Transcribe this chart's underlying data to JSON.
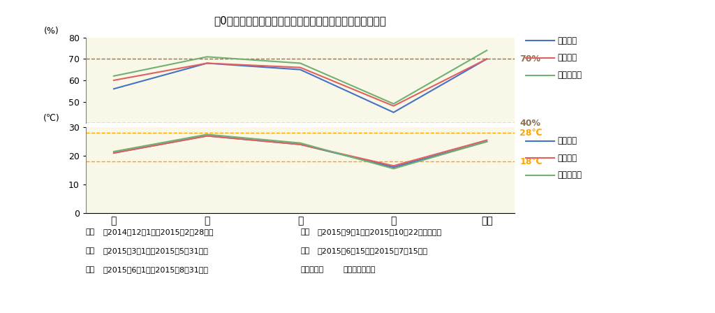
{
  "title": "「0宣言の家」の四季別、部屋別にみた平均温度、平均湿度",
  "seasons": [
    "春",
    "夏",
    "秋",
    "冬",
    "雨期"
  ],
  "humidity": {
    "居間湿度": [
      56,
      68,
      65,
      45,
      70
    ],
    "寝室湿度": [
      60,
      68,
      66,
      48,
      70
    ],
    "脱衣所湿度": [
      62,
      71,
      68,
      49,
      74
    ]
  },
  "temperature": {
    "居間温度": [
      21,
      27,
      24,
      16,
      25
    ],
    "寝室温度": [
      21,
      27,
      24,
      16.5,
      25.5
    ],
    "脱衣所温度": [
      21.5,
      27.5,
      24.5,
      15.5,
      25
    ]
  },
  "humidity_ylim": [
    40,
    80
  ],
  "humidity_yticks": [
    50,
    60,
    70,
    80
  ],
  "temperature_ylim": [
    0,
    30
  ],
  "temperature_yticks": [
    0,
    10,
    20,
    30
  ],
  "humidity_ref_line_70": 70,
  "humidity_ref_line_40": 40,
  "temp_ref_line_28": 28,
  "temp_ref_line_18": 18,
  "bg_color": "#f9f7e8",
  "line_colors": [
    "#4472c4",
    "#e06060",
    "#70b070"
  ],
  "ref_line_color_dark": "#8B7355",
  "ref_line_color_orange": "#FFA500",
  "ref_label_70_color": "#8B7355",
  "ref_label_40_color": "#8B7355",
  "ref_label_28_color": "#FFA500",
  "ref_label_18_color": "#FFA500",
  "humidity_legend": [
    "居間湿度",
    "寝室湿度",
    "脱衣所湿度"
  ],
  "temperature_legend": [
    "居間温度",
    "寝室温度",
    "脱衣所温度"
  ],
  "footnote_left": "冬期（2014年12月1日～2015年2月28日）\n春期（2015年3月1日～2015年5月31日）\n夏期（2015年6月1日～2015年8月31日）",
  "footnote_right": "秋期（2015年9月1日～2015年10月22日頃まで）\n雨期（2015年6月15日～2015年7月15日）\n記述統計量（温度と湿度）"
}
